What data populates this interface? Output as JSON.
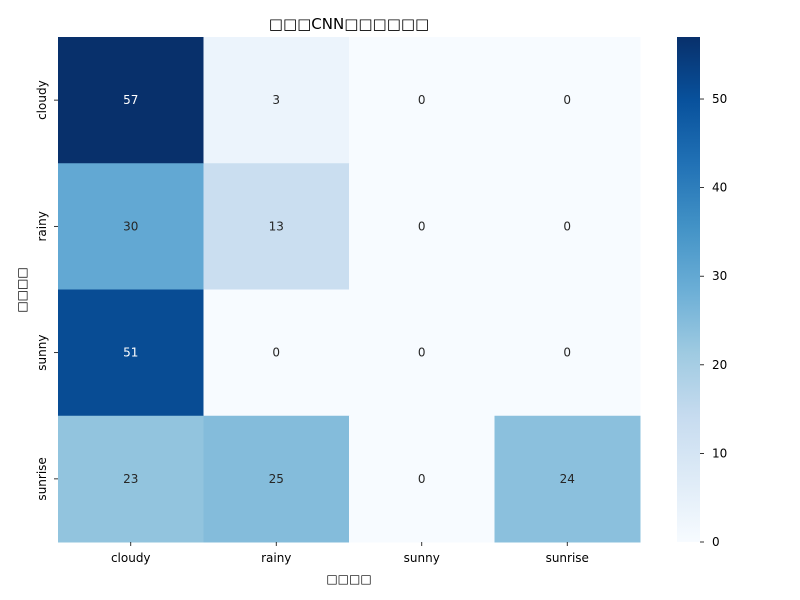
{
  "chart_data": {
    "type": "heatmap",
    "title": "□□□CNN□□□□□□",
    "xlabel": "□□□□",
    "ylabel": "□□□□",
    "x_categories": [
      "cloudy",
      "rainy",
      "sunny",
      "sunrise"
    ],
    "y_categories": [
      "cloudy",
      "rainy",
      "sunny",
      "sunrise"
    ],
    "values": [
      [
        57,
        3,
        0,
        0
      ],
      [
        30,
        13,
        0,
        0
      ],
      [
        51,
        0,
        0,
        0
      ],
      [
        23,
        25,
        0,
        24
      ]
    ],
    "colorbar": {
      "range": [
        0,
        57
      ],
      "ticks": [
        0,
        10,
        20,
        30,
        40,
        50
      ]
    },
    "colormap": "Blues",
    "annotations": true
  }
}
